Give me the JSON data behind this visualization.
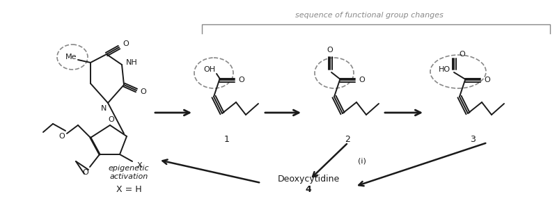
{
  "bg": "#ffffff",
  "dark": "#1a1a1a",
  "gray": "#888888",
  "seq_label": "sequence of functional group changes",
  "epigenetic": "epigenetic\nactivation",
  "deoxycytidine": "Deoxycytidine",
  "reaction_i": "(i)",
  "xeqh": "X = H",
  "figsize": [
    8.0,
    2.89
  ],
  "dpi": 100
}
